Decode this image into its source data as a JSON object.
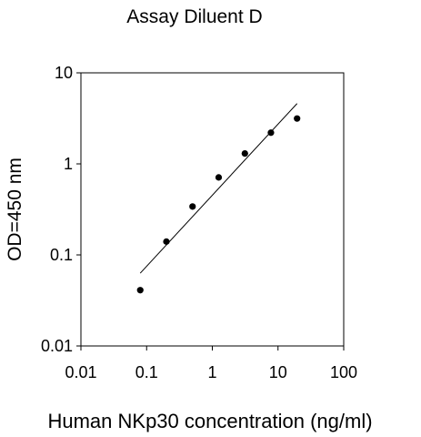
{
  "chart_data": {
    "type": "scatter",
    "title": "Assay Diluent D",
    "xlabel": "Human NKp30 concentration (ng/ml)",
    "ylabel": "OD=450 nm",
    "x_scale": "log",
    "y_scale": "log",
    "xlim": [
      0.01,
      100
    ],
    "ylim": [
      0.01,
      10
    ],
    "x_ticks": [
      "0.01",
      "0.1",
      "1",
      "10",
      "100"
    ],
    "y_ticks": [
      "0.01",
      "0.1",
      "1",
      "10"
    ],
    "grid": false,
    "legend": "none",
    "points": [
      {
        "x": 0.08,
        "y": 0.041
      },
      {
        "x": 0.2,
        "y": 0.14
      },
      {
        "x": 0.5,
        "y": 0.34
      },
      {
        "x": 1.25,
        "y": 0.71
      },
      {
        "x": 3.13,
        "y": 1.3
      },
      {
        "x": 7.8,
        "y": 2.2
      },
      {
        "x": 19.5,
        "y": 3.15
      }
    ],
    "fit_line": {
      "x": [
        0.08,
        19.5
      ],
      "y": [
        0.063,
        4.6
      ]
    },
    "colors": {
      "points": "#000000",
      "line": "#000000",
      "axes": "#000000"
    }
  }
}
